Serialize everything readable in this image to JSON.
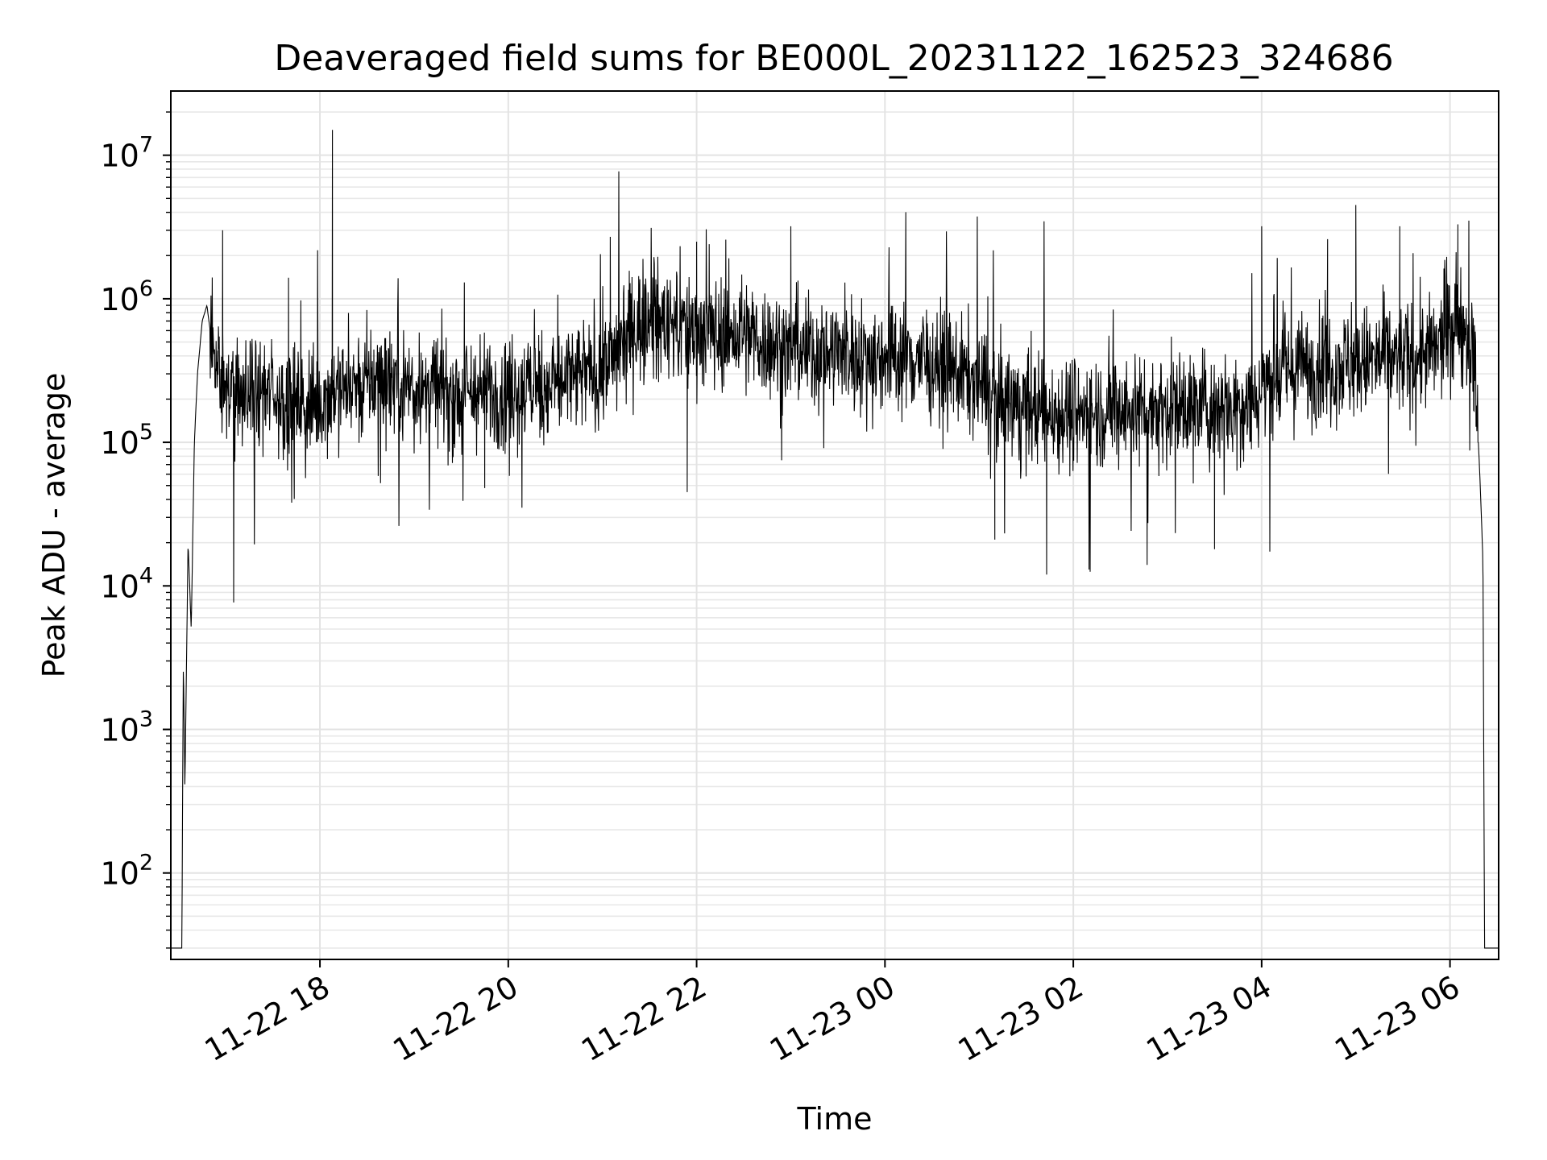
{
  "chart_data": {
    "type": "line",
    "title": "Deaveraged field sums for BE000L_20231122_162523_324686",
    "xlabel": "Time",
    "ylabel": "Peak ADU - average",
    "yscale": "log",
    "ylim": [
      25,
      28000000
    ],
    "xlim": [
      "2023-11-22 16:25",
      "2023-11-23 06:31"
    ],
    "grid": true,
    "line_color": "#000000",
    "x_ticks": [
      "11-22 18",
      "11-22 20",
      "11-22 22",
      "11-23 00",
      "11-23 02",
      "11-23 04",
      "11-23 06"
    ],
    "y_ticks": [
      {
        "base": "10",
        "exp": "2",
        "value": 100
      },
      {
        "base": "10",
        "exp": "3",
        "value": 1000
      },
      {
        "base": "10",
        "exp": "4",
        "value": 10000
      },
      {
        "base": "10",
        "exp": "5",
        "value": 100000
      },
      {
        "base": "10",
        "exp": "6",
        "value": 1000000
      },
      {
        "base": "10",
        "exp": "7",
        "value": 10000000
      }
    ],
    "series": [
      {
        "x": [
          "2023-11-22 16:32",
          "2023-11-22 16:33",
          "2023-11-22 16:34",
          "2023-11-22 16:35",
          "2023-11-22 16:36",
          "2023-11-22 16:38",
          "2023-11-22 16:40",
          "2023-11-22 16:42",
          "2023-11-22 16:45",
          "2023-11-22 16:48",
          "2023-11-22 16:51",
          "2023-11-22 16:54",
          "2023-11-22 16:57",
          "2023-11-22 17:00",
          "2023-11-22 17:05",
          "2023-11-22 17:15",
          "2023-11-22 17:30",
          "2023-11-22 17:45",
          "2023-11-22 17:55",
          "2023-11-22 18:08",
          "2023-11-22 18:20",
          "2023-11-22 18:40",
          "2023-11-22 19:00",
          "2023-11-22 19:30",
          "2023-11-22 20:00",
          "2023-11-22 20:30",
          "2023-11-22 21:00",
          "2023-11-22 21:20",
          "2023-11-22 21:40",
          "2023-11-22 22:00",
          "2023-11-22 22:30",
          "2023-11-22 23:00",
          "2023-11-22 23:30",
          "2023-11-23 00:00",
          "2023-11-23 00:30",
          "2023-11-23 01:00",
          "2023-11-23 01:15",
          "2023-11-23 01:30",
          "2023-11-23 02:00",
          "2023-11-23 02:30",
          "2023-11-23 03:00",
          "2023-11-23 03:30",
          "2023-11-23 03:55",
          "2023-11-23 04:05",
          "2023-11-23 04:30",
          "2023-11-23 05:00",
          "2023-11-23 05:30",
          "2023-11-23 05:50",
          "2023-11-23 06:05",
          "2023-11-23 06:12",
          "2023-11-23 06:16",
          "2023-11-23 06:19",
          "2023-11-23 06:21",
          "2023-11-23 06:22"
        ],
        "values": [
          30,
          3000,
          380,
          3000,
          20000,
          5000,
          100000,
          300000,
          700000,
          900000,
          500000,
          350000,
          250000,
          220000,
          200000,
          210000,
          220000,
          190000,
          180000,
          230000,
          250000,
          280000,
          250000,
          220000,
          230000,
          260000,
          320000,
          650000,
          700000,
          600000,
          550000,
          450000,
          420000,
          410000,
          380000,
          260000,
          180000,
          170000,
          160000,
          170000,
          175000,
          180000,
          200000,
          300000,
          330000,
          360000,
          380000,
          420000,
          700000,
          600000,
          300000,
          60000,
          15000,
          30
        ]
      },
      {
        "x": [
          "2023-11-22 16:58",
          "2023-11-22 17:40",
          "2023-11-22 18:08",
          "2023-11-22 19:32",
          "2023-11-22 21:05",
          "2023-11-22 22:00",
          "2023-11-22 22:08",
          "2023-11-22 23:00",
          "2023-11-23 04:00",
          "2023-11-23 04:42",
          "2023-11-23 05:00",
          "2023-11-23 05:28",
          "2023-11-23 06:05",
          "2023-11-23 06:12"
        ],
        "values": [
          3000000,
          1400000,
          15000000,
          1300000,
          2700000,
          2500000,
          2400000,
          3200000,
          3200000,
          2600000,
          4500000,
          3200000,
          3300000,
          3500000
        ]
      },
      {
        "x": [
          "2023-11-22 17:05",
          "2023-11-22 17:42",
          "2023-11-22 19:45",
          "2023-11-22 21:54",
          "2023-11-23 01:10",
          "2023-11-23 01:43",
          "2023-11-23 02:10",
          "2023-11-23 02:47",
          "2023-11-23 03:30"
        ],
        "values": [
          38000,
          38000,
          48000,
          45000,
          21000,
          12000,
          13000,
          14000,
          18000
        ]
      }
    ]
  }
}
